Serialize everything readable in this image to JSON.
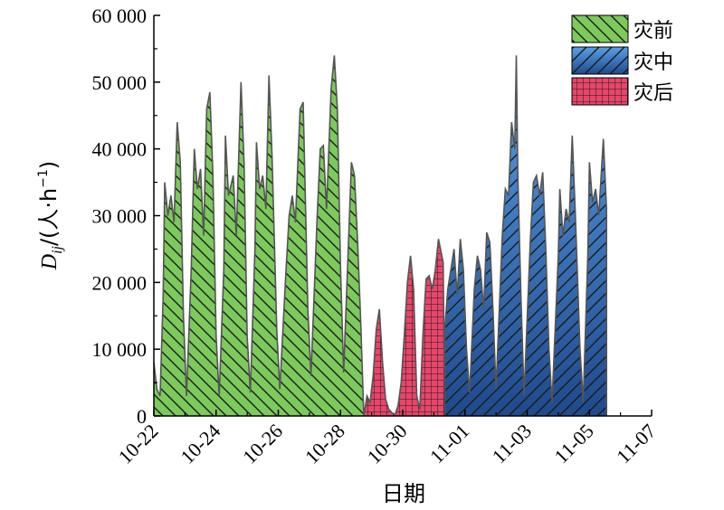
{
  "chart_data": {
    "type": "area",
    "title": "",
    "xlabel": "日期",
    "ylabel_main": "D",
    "ylabel_sub": "ij",
    "ylabel_rest": "/(人·h",
    "ylabel_sup": "−1",
    "ylabel_close": ")",
    "ylim": [
      0,
      60000
    ],
    "y_ticks": [
      0,
      10000,
      20000,
      30000,
      40000,
      50000,
      60000
    ],
    "y_tick_labels": [
      "0",
      "10 000",
      "20 000",
      "30 000",
      "40 000",
      "50 000",
      "60 000"
    ],
    "x_ticks": [
      "10-22",
      "10-24",
      "10-26",
      "10-28",
      "10-30",
      "11-01",
      "11-03",
      "11-05",
      "11-07"
    ],
    "x_range_days": [
      0,
      16
    ],
    "legend_position": "top-right",
    "series": [
      {
        "name": "灾前",
        "fill": "#7cc95c",
        "pattern": "diagonal-down",
        "points": [
          [
            0.0,
            8000
          ],
          [
            0.1,
            4000
          ],
          [
            0.2,
            3000
          ],
          [
            0.3,
            18000
          ],
          [
            0.35,
            35000
          ],
          [
            0.45,
            30000
          ],
          [
            0.55,
            33000
          ],
          [
            0.65,
            29000
          ],
          [
            0.75,
            44000
          ],
          [
            0.85,
            38000
          ],
          [
            0.95,
            15000
          ],
          [
            1.05,
            3000
          ],
          [
            1.2,
            22000
          ],
          [
            1.3,
            40000
          ],
          [
            1.4,
            34000
          ],
          [
            1.5,
            37000
          ],
          [
            1.6,
            27000
          ],
          [
            1.7,
            46000
          ],
          [
            1.8,
            48500
          ],
          [
            1.9,
            36000
          ],
          [
            2.0,
            12000
          ],
          [
            2.1,
            3000
          ],
          [
            2.25,
            22000
          ],
          [
            2.3,
            42000
          ],
          [
            2.4,
            33000
          ],
          [
            2.55,
            36000
          ],
          [
            2.65,
            27000
          ],
          [
            2.8,
            50000
          ],
          [
            2.9,
            38000
          ],
          [
            3.0,
            12000
          ],
          [
            3.1,
            3500
          ],
          [
            3.25,
            25000
          ],
          [
            3.3,
            41000
          ],
          [
            3.4,
            34000
          ],
          [
            3.5,
            36000
          ],
          [
            3.6,
            31000
          ],
          [
            3.7,
            51000
          ],
          [
            3.8,
            39000
          ],
          [
            3.95,
            13000
          ],
          [
            4.05,
            4000
          ],
          [
            4.25,
            22000
          ],
          [
            4.35,
            30000
          ],
          [
            4.45,
            33000
          ],
          [
            4.55,
            29000
          ],
          [
            4.7,
            46000
          ],
          [
            4.8,
            47000
          ],
          [
            4.95,
            16000
          ],
          [
            5.05,
            6000
          ],
          [
            5.25,
            30000
          ],
          [
            5.35,
            40000
          ],
          [
            5.45,
            40500
          ],
          [
            5.55,
            31000
          ],
          [
            5.7,
            49000
          ],
          [
            5.8,
            54000
          ],
          [
            5.9,
            46000
          ],
          [
            6.0,
            22000
          ],
          [
            6.1,
            6500
          ],
          [
            6.25,
            25000
          ],
          [
            6.35,
            38000
          ],
          [
            6.45,
            36000
          ],
          [
            6.55,
            26000
          ],
          [
            6.65,
            14000
          ],
          [
            6.75,
            0
          ]
        ]
      },
      {
        "name": "灾后",
        "fill": "#e8456a",
        "pattern": "grid",
        "points": [
          [
            6.75,
            0
          ],
          [
            6.85,
            3000
          ],
          [
            6.95,
            2000
          ],
          [
            7.05,
            6000
          ],
          [
            7.15,
            13000
          ],
          [
            7.25,
            16000
          ],
          [
            7.35,
            8000
          ],
          [
            7.45,
            2500
          ],
          [
            7.55,
            1000
          ],
          [
            7.65,
            500
          ],
          [
            7.75,
            200
          ],
          [
            7.85,
            1500
          ],
          [
            7.95,
            5000
          ],
          [
            8.05,
            12000
          ],
          [
            8.15,
            20000
          ],
          [
            8.25,
            24000
          ],
          [
            8.35,
            19000
          ],
          [
            8.45,
            3000
          ],
          [
            8.55,
            1000
          ],
          [
            8.65,
            12000
          ],
          [
            8.75,
            20500
          ],
          [
            8.85,
            21000
          ],
          [
            8.95,
            19000
          ],
          [
            9.05,
            22000
          ],
          [
            9.15,
            26500
          ],
          [
            9.3,
            23000
          ],
          [
            9.35,
            0
          ]
        ]
      },
      {
        "name": "灾中",
        "fill": "#4a8fd6",
        "pattern": "diagonal-up",
        "points": [
          [
            9.35,
            0
          ],
          [
            9.35,
            13000
          ],
          [
            9.45,
            19000
          ],
          [
            9.55,
            22000
          ],
          [
            9.65,
            25000
          ],
          [
            9.75,
            18000
          ],
          [
            9.85,
            26500
          ],
          [
            9.95,
            22000
          ],
          [
            10.05,
            10000
          ],
          [
            10.15,
            3500
          ],
          [
            10.3,
            19000
          ],
          [
            10.4,
            24000
          ],
          [
            10.5,
            22000
          ],
          [
            10.6,
            16000
          ],
          [
            10.7,
            27500
          ],
          [
            10.8,
            26000
          ],
          [
            10.9,
            16000
          ],
          [
            11.0,
            4000
          ],
          [
            11.2,
            27000
          ],
          [
            11.3,
            34000
          ],
          [
            11.4,
            33000
          ],
          [
            11.5,
            44000
          ],
          [
            11.6,
            40000
          ],
          [
            11.65,
            54000
          ],
          [
            11.7,
            36000
          ],
          [
            11.8,
            18000
          ],
          [
            11.9,
            3000
          ],
          [
            12.1,
            26000
          ],
          [
            12.2,
            35000
          ],
          [
            12.3,
            36000
          ],
          [
            12.4,
            33000
          ],
          [
            12.5,
            36500
          ],
          [
            12.6,
            25000
          ],
          [
            12.7,
            10000
          ],
          [
            12.8,
            2000
          ],
          [
            13.0,
            24000
          ],
          [
            13.05,
            34000
          ],
          [
            13.15,
            27000
          ],
          [
            13.25,
            31000
          ],
          [
            13.35,
            29000
          ],
          [
            13.45,
            42000
          ],
          [
            13.55,
            30000
          ],
          [
            13.7,
            10000
          ],
          [
            13.8,
            2000
          ],
          [
            13.95,
            24000
          ],
          [
            14.0,
            38000
          ],
          [
            14.1,
            32000
          ],
          [
            14.2,
            34000
          ],
          [
            14.3,
            30000
          ],
          [
            14.45,
            41500
          ],
          [
            14.55,
            31000
          ],
          [
            14.55,
            0
          ]
        ]
      }
    ]
  }
}
